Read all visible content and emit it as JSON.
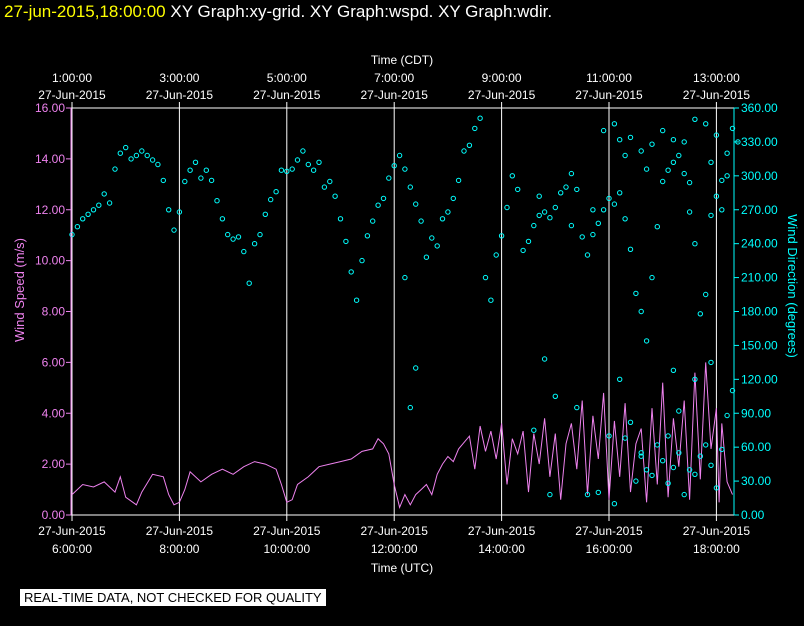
{
  "header": {
    "date_time": "27-jun-2015,18:00:00",
    "graphs": "XY Graph:xy-grid.  XY Graph:wspd.  XY Graph:wdir."
  },
  "footer": {
    "disclaimer": "REAL-TIME DATA, NOT CHECKED FOR QUALITY"
  },
  "chart_data": {
    "type": "scatter",
    "top_axis": {
      "label": "Time (CDT)",
      "ticks": [
        {
          "time": "1:00:00",
          "date": "27-Jun-2015",
          "hour": 0
        },
        {
          "time": "3:00:00",
          "date": "27-Jun-2015",
          "hour": 2
        },
        {
          "time": "5:00:00",
          "date": "27-Jun-2015",
          "hour": 4
        },
        {
          "time": "7:00:00",
          "date": "27-Jun-2015",
          "hour": 6
        },
        {
          "time": "9:00:00",
          "date": "27-Jun-2015",
          "hour": 8
        },
        {
          "time": "11:00:00",
          "date": "27-Jun-2015",
          "hour": 10
        },
        {
          "time": "13:00:00",
          "date": "27-Jun-2015",
          "hour": 12
        }
      ]
    },
    "bottom_axis": {
      "label": "Time (UTC)",
      "ticks": [
        {
          "date": "27-Jun-2015",
          "time": "6:00:00",
          "hour": 0
        },
        {
          "date": "27-Jun-2015",
          "time": "8:00:00",
          "hour": 2
        },
        {
          "date": "27-Jun-2015",
          "time": "10:00:00",
          "hour": 4
        },
        {
          "date": "27-Jun-2015",
          "time": "12:00:00",
          "hour": 6
        },
        {
          "date": "27-Jun-2015",
          "time": "14:00:00",
          "hour": 8
        },
        {
          "date": "27-Jun-2015",
          "time": "16:00:00",
          "hour": 10
        },
        {
          "date": "27-Jun-2015",
          "time": "18:00:00",
          "hour": 12
        }
      ]
    },
    "x_range_hours": [
      0,
      12.4
    ],
    "left_axis": {
      "label": "Wind Speed (m/s)",
      "range": [
        0,
        16
      ],
      "ticks": [
        "0.00",
        "2.00",
        "4.00",
        "6.00",
        "8.00",
        "10.00",
        "12.00",
        "14.00",
        "16.00"
      ]
    },
    "right_axis": {
      "label": "Wind Direction (degrees)",
      "range": [
        0,
        360
      ],
      "ticks": [
        "0.00",
        "30.00",
        "60.00",
        "90.00",
        "120.00",
        "150.00",
        "180.00",
        "210.00",
        "240.00",
        "270.00",
        "300.00",
        "330.00",
        "360.00"
      ]
    },
    "colors": {
      "speed": "#ee82ee",
      "direction": "#00ffff",
      "grid": "#ffffff",
      "title": "#ffff00"
    },
    "series": [
      {
        "name": "Wind Speed",
        "kind": "line",
        "units": "m/s",
        "points": [
          [
            0,
            0.8
          ],
          [
            0.2,
            1.2
          ],
          [
            0.4,
            1.1
          ],
          [
            0.6,
            1.3
          ],
          [
            0.8,
            0.9
          ],
          [
            0.9,
            1.5
          ],
          [
            1.0,
            0.7
          ],
          [
            1.2,
            0.4
          ],
          [
            1.3,
            0.9
          ],
          [
            1.5,
            1.6
          ],
          [
            1.7,
            1.5
          ],
          [
            1.8,
            0.8
          ],
          [
            1.9,
            0.4
          ],
          [
            2.0,
            0.5
          ],
          [
            2.1,
            1.0
          ],
          [
            2.2,
            1.7
          ],
          [
            2.4,
            1.3
          ],
          [
            2.6,
            1.6
          ],
          [
            2.8,
            1.8
          ],
          [
            3.0,
            1.6
          ],
          [
            3.2,
            1.9
          ],
          [
            3.4,
            2.1
          ],
          [
            3.6,
            2.0
          ],
          [
            3.8,
            1.8
          ],
          [
            3.9,
            1.2
          ],
          [
            4.0,
            0.5
          ],
          [
            4.1,
            0.6
          ],
          [
            4.2,
            1.2
          ],
          [
            4.4,
            1.5
          ],
          [
            4.6,
            1.9
          ],
          [
            4.8,
            2.0
          ],
          [
            5.0,
            2.1
          ],
          [
            5.2,
            2.2
          ],
          [
            5.4,
            2.5
          ],
          [
            5.6,
            2.6
          ],
          [
            5.7,
            3.0
          ],
          [
            5.8,
            2.8
          ],
          [
            5.9,
            2.4
          ],
          [
            6.0,
            1.2
          ],
          [
            6.1,
            0.3
          ],
          [
            6.2,
            0.8
          ],
          [
            6.3,
            0.4
          ],
          [
            6.4,
            0.8
          ],
          [
            6.5,
            1.0
          ],
          [
            6.6,
            1.2
          ],
          [
            6.7,
            0.8
          ],
          [
            6.8,
            1.6
          ],
          [
            6.9,
            2.0
          ],
          [
            7.0,
            2.3
          ],
          [
            7.1,
            2.1
          ],
          [
            7.2,
            2.6
          ],
          [
            7.4,
            3.1
          ],
          [
            7.5,
            1.8
          ],
          [
            7.6,
            3.5
          ],
          [
            7.7,
            2.5
          ],
          [
            7.8,
            3.3
          ],
          [
            7.9,
            2.2
          ],
          [
            8.0,
            3.6
          ],
          [
            8.1,
            1.2
          ],
          [
            8.2,
            3.0
          ],
          [
            8.3,
            2.4
          ],
          [
            8.4,
            3.3
          ],
          [
            8.5,
            0.9
          ],
          [
            8.6,
            3.2
          ],
          [
            8.7,
            2.0
          ],
          [
            8.8,
            3.8
          ],
          [
            8.9,
            1.5
          ],
          [
            9.0,
            3.2
          ],
          [
            9.1,
            0.6
          ],
          [
            9.2,
            2.8
          ],
          [
            9.3,
            3.6
          ],
          [
            9.4,
            1.8
          ],
          [
            9.5,
            4.5
          ],
          [
            9.6,
            0.8
          ],
          [
            9.7,
            3.9
          ],
          [
            9.8,
            2.2
          ],
          [
            9.9,
            4.8
          ],
          [
            10.0,
            0.6
          ],
          [
            10.1,
            3.7
          ],
          [
            10.2,
            1.5
          ],
          [
            10.3,
            4.4
          ],
          [
            10.4,
            0.9
          ],
          [
            10.5,
            2.8
          ],
          [
            10.6,
            3.4
          ],
          [
            10.7,
            0.5
          ],
          [
            10.8,
            4.2
          ],
          [
            10.9,
            1.2
          ],
          [
            11.0,
            5.2
          ],
          [
            11.1,
            0.7
          ],
          [
            11.2,
            3.8
          ],
          [
            11.3,
            1.9
          ],
          [
            11.4,
            4.5
          ],
          [
            11.5,
            0.6
          ],
          [
            11.6,
            5.6
          ],
          [
            11.7,
            1.4
          ],
          [
            11.8,
            6.0
          ],
          [
            11.9,
            2.6
          ],
          [
            12.0,
            4.2
          ],
          [
            12.05,
            0.5
          ],
          [
            12.1,
            3.6
          ],
          [
            12.2,
            1.3
          ],
          [
            12.3,
            0.8
          ]
        ]
      },
      {
        "name": "Wind Direction",
        "kind": "scatter",
        "units": "degrees",
        "points": [
          [
            0.0,
            248
          ],
          [
            0.1,
            255
          ],
          [
            0.2,
            262
          ],
          [
            0.3,
            266
          ],
          [
            0.4,
            270
          ],
          [
            0.5,
            274
          ],
          [
            0.6,
            284
          ],
          [
            0.7,
            276
          ],
          [
            0.8,
            306
          ],
          [
            0.9,
            320
          ],
          [
            1.0,
            325
          ],
          [
            1.1,
            315
          ],
          [
            1.2,
            318
          ],
          [
            1.3,
            322
          ],
          [
            1.4,
            318
          ],
          [
            1.5,
            314
          ],
          [
            1.6,
            310
          ],
          [
            1.7,
            296
          ],
          [
            1.8,
            270
          ],
          [
            1.9,
            252
          ],
          [
            2.0,
            268
          ],
          [
            2.1,
            295
          ],
          [
            2.2,
            305
          ],
          [
            2.3,
            312
          ],
          [
            2.4,
            298
          ],
          [
            2.5,
            305
          ],
          [
            2.6,
            296
          ],
          [
            2.7,
            278
          ],
          [
            2.8,
            262
          ],
          [
            2.9,
            248
          ],
          [
            3.0,
            244
          ],
          [
            3.1,
            246
          ],
          [
            3.2,
            233
          ],
          [
            3.3,
            205
          ],
          [
            3.4,
            240
          ],
          [
            3.5,
            248
          ],
          [
            3.6,
            266
          ],
          [
            3.7,
            279
          ],
          [
            3.8,
            286
          ],
          [
            3.9,
            305
          ],
          [
            4.0,
            304
          ],
          [
            4.1,
            306
          ],
          [
            4.2,
            314
          ],
          [
            4.3,
            322
          ],
          [
            4.4,
            310
          ],
          [
            4.5,
            305
          ],
          [
            4.6,
            312
          ],
          [
            4.7,
            290
          ],
          [
            4.8,
            295
          ],
          [
            4.9,
            282
          ],
          [
            5.0,
            262
          ],
          [
            5.1,
            242
          ],
          [
            5.2,
            215
          ],
          [
            5.3,
            190
          ],
          [
            5.4,
            225
          ],
          [
            5.5,
            247
          ],
          [
            5.6,
            260
          ],
          [
            5.7,
            274
          ],
          [
            5.8,
            280
          ],
          [
            5.9,
            298
          ],
          [
            6.0,
            309
          ],
          [
            6.1,
            318
          ],
          [
            6.2,
            306
          ],
          [
            6.3,
            290
          ],
          [
            6.4,
            275
          ],
          [
            6.5,
            260
          ],
          [
            6.6,
            228
          ],
          [
            6.7,
            245
          ],
          [
            6.8,
            238
          ],
          [
            6.9,
            262
          ],
          [
            7.0,
            268
          ],
          [
            7.1,
            280
          ],
          [
            7.2,
            296
          ],
          [
            7.3,
            322
          ],
          [
            7.4,
            327
          ],
          [
            7.5,
            342
          ],
          [
            7.6,
            351
          ],
          [
            7.7,
            210
          ],
          [
            7.8,
            190
          ],
          [
            7.9,
            230
          ],
          [
            8.0,
            247
          ],
          [
            8.1,
            272
          ],
          [
            8.2,
            300
          ],
          [
            8.3,
            288
          ],
          [
            8.4,
            234
          ],
          [
            8.5,
            242
          ],
          [
            8.6,
            256
          ],
          [
            8.7,
            265
          ],
          [
            8.8,
            268
          ],
          [
            8.9,
            263
          ],
          [
            9.0,
            272
          ],
          [
            9.1,
            285
          ],
          [
            9.2,
            290
          ],
          [
            9.3,
            302
          ],
          [
            9.4,
            288
          ],
          [
            9.5,
            246
          ],
          [
            9.6,
            230
          ],
          [
            9.7,
            248
          ],
          [
            9.8,
            258
          ],
          [
            9.9,
            270
          ],
          [
            10.0,
            280
          ],
          [
            10.1,
            275
          ],
          [
            10.2,
            285
          ],
          [
            10.3,
            262
          ],
          [
            10.4,
            235
          ],
          [
            10.5,
            196
          ],
          [
            10.6,
            180
          ],
          [
            10.7,
            154
          ],
          [
            10.8,
            210
          ],
          [
            10.9,
            255
          ],
          [
            11.0,
            295
          ],
          [
            11.1,
            305
          ],
          [
            11.2,
            312
          ],
          [
            11.3,
            318
          ],
          [
            11.4,
            302
          ],
          [
            11.5,
            268
          ],
          [
            11.6,
            240
          ],
          [
            11.7,
            178
          ],
          [
            11.8,
            195
          ],
          [
            11.9,
            265
          ],
          [
            12.0,
            282
          ],
          [
            12.1,
            296
          ],
          [
            12.2,
            300
          ],
          [
            12.3,
            342
          ],
          [
            10.2,
            332
          ],
          [
            10.4,
            334
          ],
          [
            10.6,
            322
          ],
          [
            10.8,
            328
          ],
          [
            11.0,
            340
          ],
          [
            11.2,
            332
          ],
          [
            11.4,
            330
          ],
          [
            11.6,
            350
          ],
          [
            11.8,
            346
          ],
          [
            12.0,
            336
          ],
          [
            12.2,
            320
          ],
          [
            12.4,
            330
          ],
          [
            9.9,
            340
          ],
          [
            10.1,
            346
          ],
          [
            10.3,
            318
          ],
          [
            10.7,
            306
          ],
          [
            11.5,
            294
          ],
          [
            11.9,
            312
          ],
          [
            12.1,
            270
          ],
          [
            8.7,
            282
          ],
          [
            9.3,
            256
          ],
          [
            9.7,
            270
          ],
          [
            6.2,
            210
          ],
          [
            6.3,
            95
          ],
          [
            6.4,
            130
          ],
          [
            8.6,
            75
          ],
          [
            8.8,
            138
          ],
          [
            9.0,
            105
          ],
          [
            9.4,
            95
          ],
          [
            10.0,
            70
          ],
          [
            10.3,
            68
          ],
          [
            10.5,
            30
          ],
          [
            10.6,
            52
          ],
          [
            10.8,
            35
          ],
          [
            10.9,
            62
          ],
          [
            11.0,
            48
          ],
          [
            11.1,
            28
          ],
          [
            11.2,
            42
          ],
          [
            11.3,
            55
          ],
          [
            11.4,
            18
          ],
          [
            11.5,
            40
          ],
          [
            11.6,
            36
          ],
          [
            11.7,
            52
          ],
          [
            11.8,
            62
          ],
          [
            11.9,
            44
          ],
          [
            12.0,
            24
          ],
          [
            12.1,
            58
          ],
          [
            12.2,
            88
          ],
          [
            12.3,
            110
          ],
          [
            9.8,
            20
          ],
          [
            10.1,
            10
          ],
          [
            10.4,
            82
          ],
          [
            10.7,
            40
          ],
          [
            11.1,
            70
          ],
          [
            11.3,
            92
          ],
          [
            11.6,
            120
          ],
          [
            11.9,
            135
          ],
          [
            11.2,
            128
          ],
          [
            10.2,
            120
          ],
          [
            8.9,
            18
          ],
          [
            9.6,
            18
          ],
          [
            10.6,
            55
          ]
        ]
      }
    ]
  }
}
